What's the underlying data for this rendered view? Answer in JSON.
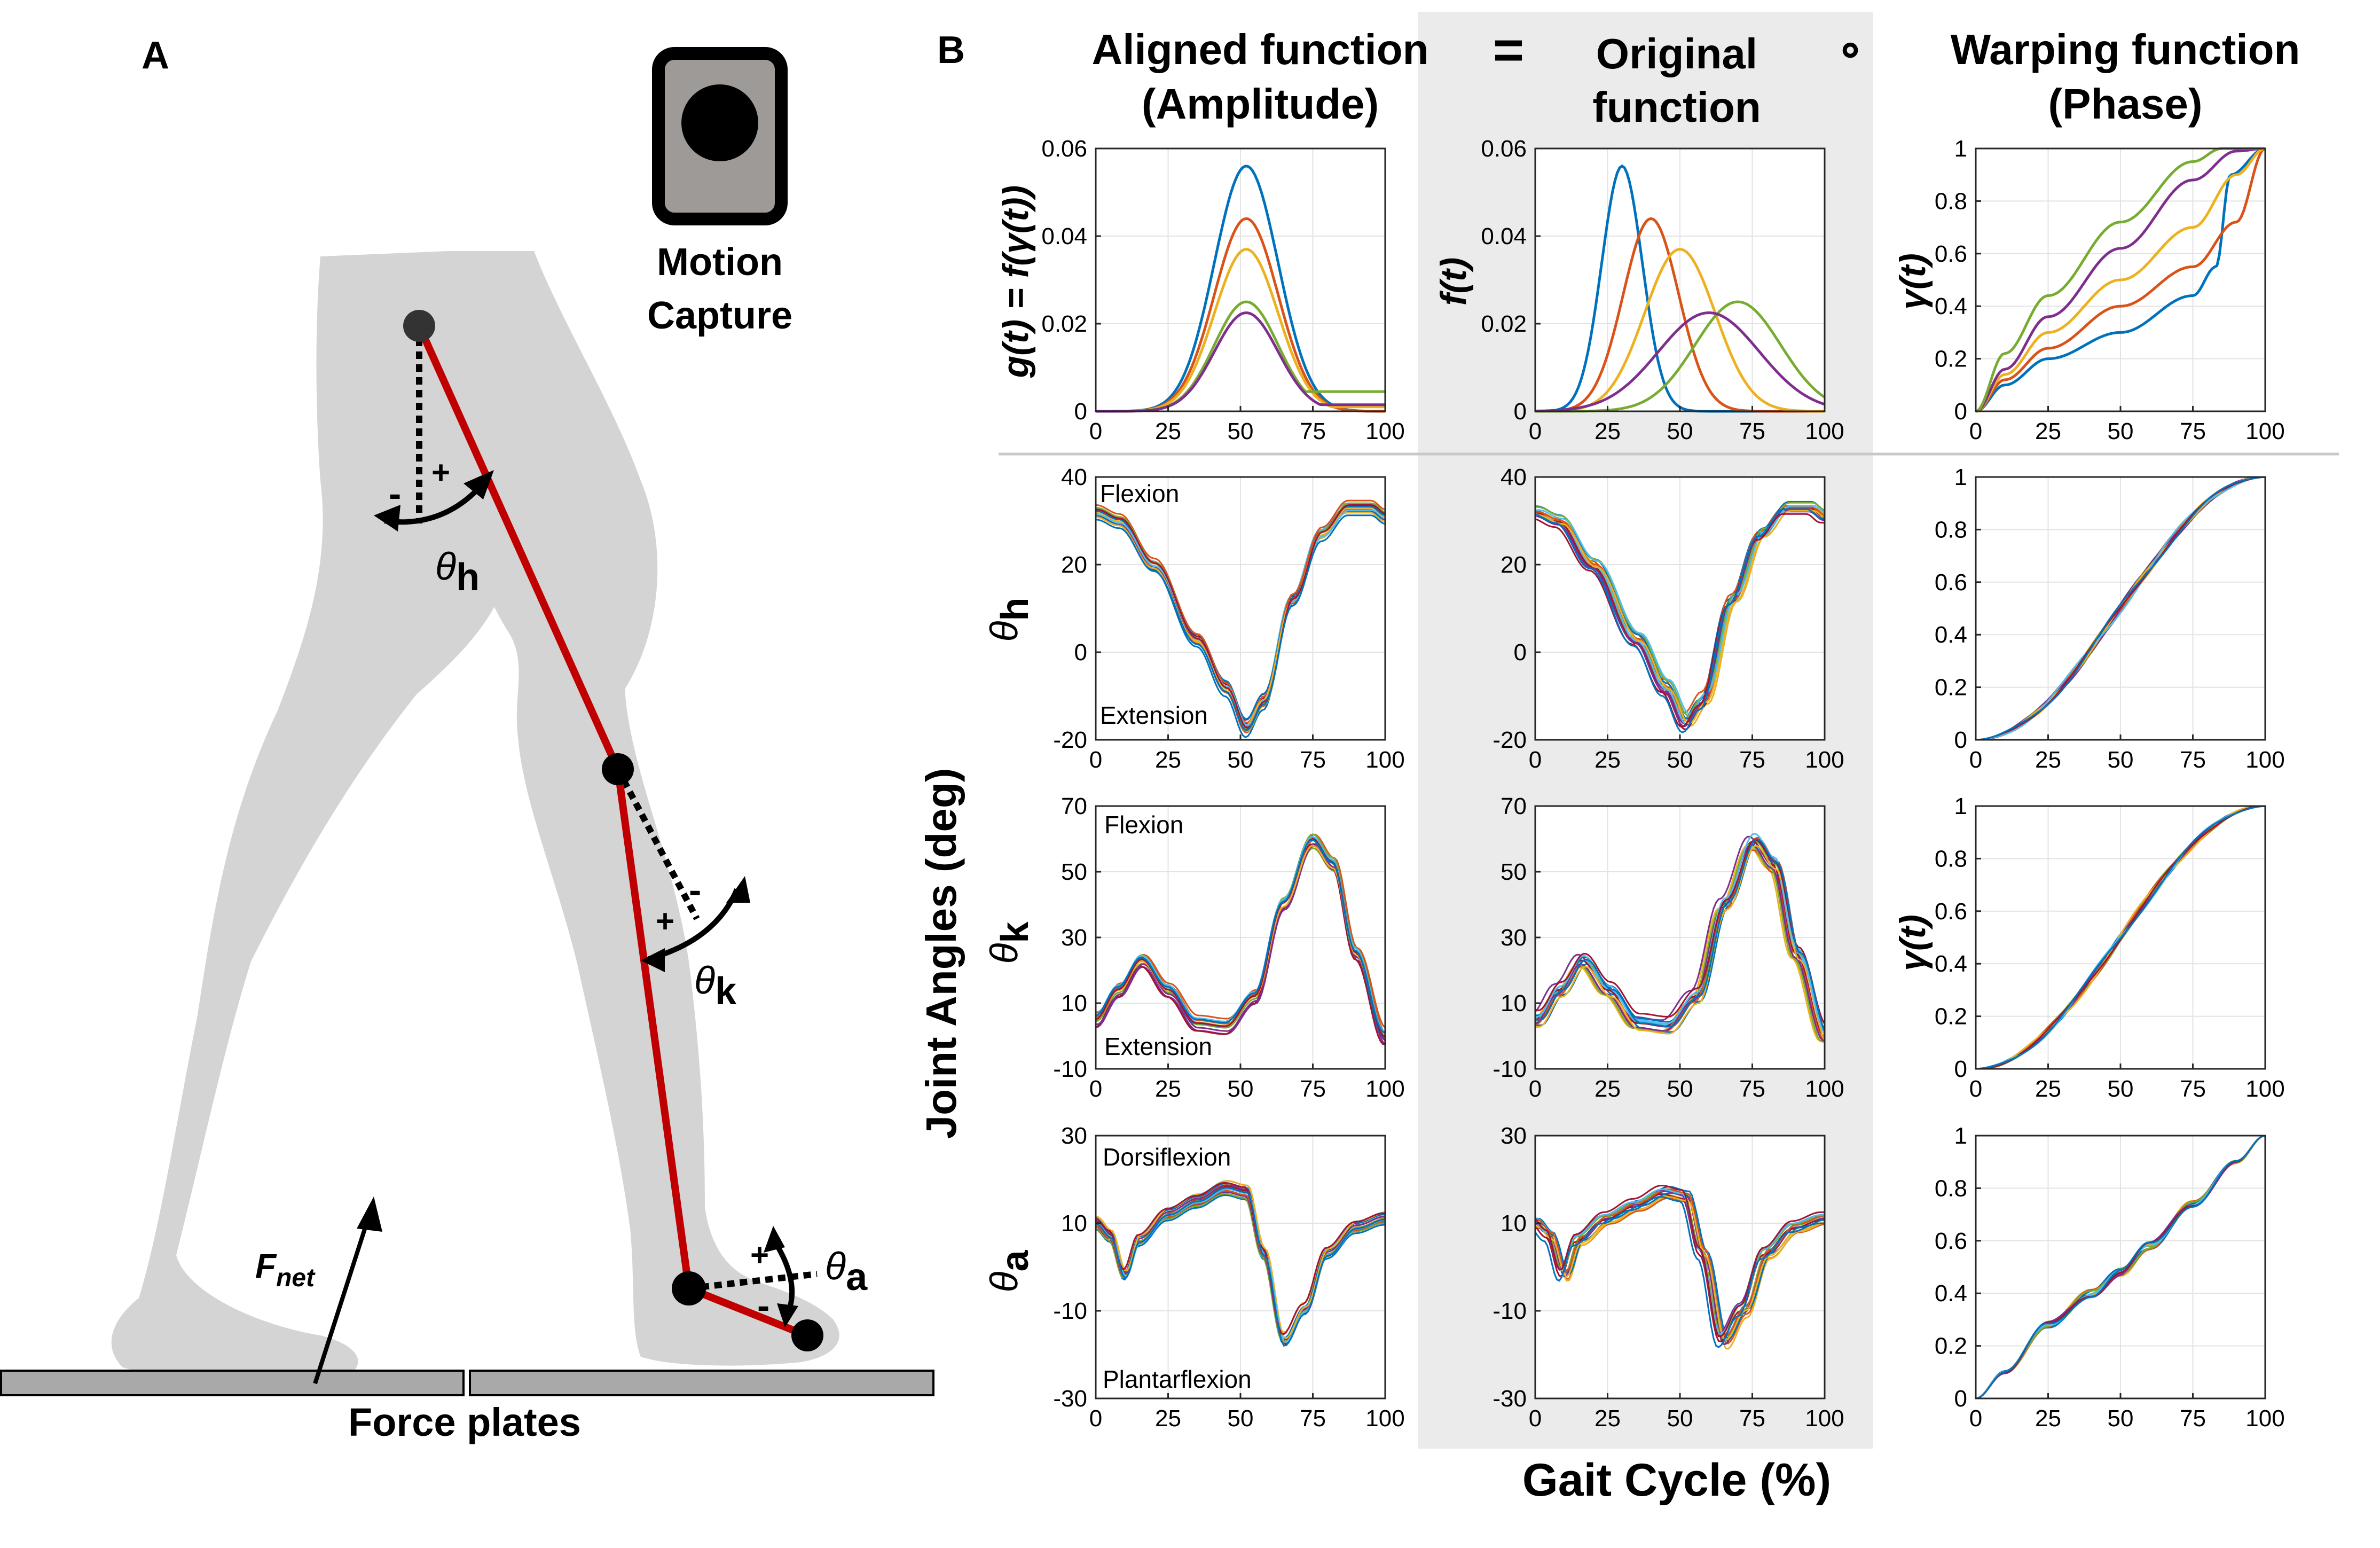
{
  "panel_a": {
    "label": "A",
    "camera_title_line1": "Motion",
    "camera_title_line2": "Capture",
    "force_plates_label": "Force plates",
    "force_label": "F",
    "force_subscript": "net",
    "hip_angle": {
      "symbol": "θ",
      "sub": "h",
      "plus": "+",
      "minus": "-"
    },
    "knee_angle": {
      "symbol": "θ",
      "sub": "k",
      "plus": "+",
      "minus": "-"
    },
    "ankle_angle": {
      "symbol": "θ",
      "sub": "a",
      "plus": "+",
      "minus": "-"
    },
    "colors": {
      "body": "#d4d4d4",
      "segment": "#c00000",
      "plate": "#a9a9a9",
      "camera": "#9e9a98"
    }
  },
  "panel_b": {
    "label": "B",
    "col1_line1": "Aligned function",
    "col1_line2": "(Amplitude)",
    "col2_line1": "Original",
    "col2_line2": "function",
    "col3_line1": "Warping function",
    "col3_line2": "(Phase)",
    "equals": "=",
    "compose": "∘",
    "ylabel_g": "g(t) = f(γ(t))",
    "ylabel_f": "f(t)",
    "ylabel_gamma": "γ(t)",
    "ylabel_theta_h": "θ",
    "ylabel_theta_h_sub": "h",
    "ylabel_theta_k": "θ",
    "ylabel_theta_k_sub": "k",
    "ylabel_theta_a": "θ",
    "ylabel_theta_a_sub": "a",
    "joint_angles_label": "Joint Angles (deg)",
    "gait_cycle_label": "Gait Cycle (%)",
    "annot_flexion": "Flexion",
    "annot_extension": "Extension",
    "annot_dorsiflexion": "Dorsiflexion",
    "annot_plantarflexion": "Plantarflexion",
    "shade_color": "#ebebeb",
    "series_colors": [
      "#0072bd",
      "#d95319",
      "#edb120",
      "#77ac30",
      "#7e2f8e"
    ]
  },
  "chart_data": [
    {
      "type": "line",
      "id": "aligned_synthetic",
      "x_range": [
        0,
        100
      ],
      "ylim": [
        0,
        0.06
      ],
      "xticks": [
        0,
        25,
        50,
        75,
        100
      ],
      "yticks": [
        0,
        0.02,
        0.04,
        0.06
      ],
      "series": [
        {
          "color": "#0072bd",
          "peak_x": 52,
          "peak_y": 0.056,
          "tail_y": 0.0
        },
        {
          "color": "#d95319",
          "peak_x": 52,
          "peak_y": 0.044,
          "tail_y": 0.0
        },
        {
          "color": "#edb120",
          "peak_x": 52,
          "peak_y": 0.037,
          "tail_y": 0.001
        },
        {
          "color": "#77ac30",
          "peak_x": 52,
          "peak_y": 0.025,
          "tail_y": 0.0045
        },
        {
          "color": "#7e2f8e",
          "peak_x": 52,
          "peak_y": 0.0225,
          "tail_y": 0.0015
        }
      ]
    },
    {
      "type": "line",
      "id": "original_synthetic",
      "x_range": [
        0,
        100
      ],
      "ylim": [
        0,
        0.06
      ],
      "xticks": [
        0,
        25,
        50,
        75,
        100
      ],
      "yticks": [
        0,
        0.02,
        0.04,
        0.06
      ],
      "series": [
        {
          "color": "#0072bd",
          "peak_x": 30,
          "peak_y": 0.056
        },
        {
          "color": "#d95319",
          "peak_x": 40,
          "peak_y": 0.044
        },
        {
          "color": "#edb120",
          "peak_x": 50,
          "peak_y": 0.037
        },
        {
          "color": "#77ac30",
          "peak_x": 70,
          "peak_y": 0.025
        },
        {
          "color": "#7e2f8e",
          "peak_x": 60,
          "peak_y": 0.0225
        }
      ]
    },
    {
      "type": "line",
      "id": "warping_synthetic",
      "x_range": [
        0,
        100
      ],
      "ylim": [
        0,
        1
      ],
      "xticks": [
        0,
        25,
        50,
        75,
        100
      ],
      "yticks": [
        0,
        0.2,
        0.4,
        0.6,
        0.8,
        1
      ],
      "series": [
        {
          "color": "#0072bd",
          "x": [
            0,
            10,
            25,
            50,
            75,
            83,
            88,
            100
          ],
          "y": [
            0,
            0.1,
            0.2,
            0.3,
            0.44,
            0.55,
            0.9,
            1
          ]
        },
        {
          "color": "#d95319",
          "x": [
            0,
            10,
            25,
            50,
            75,
            90,
            100
          ],
          "y": [
            0,
            0.12,
            0.24,
            0.4,
            0.55,
            0.72,
            1
          ]
        },
        {
          "color": "#edb120",
          "x": [
            0,
            10,
            25,
            50,
            75,
            90,
            100
          ],
          "y": [
            0,
            0.14,
            0.3,
            0.5,
            0.7,
            0.9,
            1
          ]
        },
        {
          "color": "#7e2f8e",
          "x": [
            0,
            10,
            25,
            50,
            75,
            90,
            100
          ],
          "y": [
            0,
            0.16,
            0.36,
            0.62,
            0.88,
            0.99,
            1
          ]
        },
        {
          "color": "#77ac30",
          "x": [
            0,
            10,
            25,
            50,
            75,
            85,
            100
          ],
          "y": [
            0,
            0.22,
            0.44,
            0.72,
            0.95,
            1,
            1
          ]
        }
      ]
    },
    {
      "type": "line",
      "id": "hip_aligned",
      "x_range": [
        0,
        100
      ],
      "ylim": [
        -20,
        40
      ],
      "xticks": [
        0,
        25,
        50,
        75,
        100
      ],
      "yticks": [
        -20,
        0,
        20,
        40
      ],
      "mean_x": [
        0,
        8,
        20,
        35,
        45,
        52,
        58,
        68,
        78,
        87,
        95,
        100
      ],
      "mean_y": [
        32,
        30,
        20,
        3,
        -8,
        -17,
        -11,
        12,
        27,
        33,
        33,
        31
      ]
    },
    {
      "type": "line",
      "id": "hip_original",
      "x_range": [
        0,
        100
      ],
      "ylim": [
        -20,
        40
      ],
      "xticks": [
        0,
        25,
        50,
        75,
        100
      ],
      "yticks": [
        -20,
        0,
        20,
        40
      ],
      "mean_x": [
        0,
        8,
        20,
        35,
        45,
        52,
        58,
        68,
        78,
        87,
        95,
        100
      ],
      "mean_y": [
        32,
        30,
        20,
        3,
        -8,
        -16,
        -11,
        12,
        27,
        33,
        33,
        31
      ]
    },
    {
      "type": "line",
      "id": "hip_warp",
      "x_range": [
        0,
        100
      ],
      "ylim": [
        0,
        1
      ],
      "xticks": [
        0,
        25,
        50,
        75,
        100
      ],
      "yticks": [
        0,
        0.2,
        0.4,
        0.6,
        0.8,
        1
      ],
      "x": [
        0,
        100
      ],
      "y": [
        0,
        1
      ]
    },
    {
      "type": "line",
      "id": "knee_aligned",
      "x_range": [
        0,
        100
      ],
      "ylim": [
        -10,
        70
      ],
      "xticks": [
        0,
        25,
        50,
        75,
        100
      ],
      "yticks": [
        -10,
        10,
        30,
        50,
        70
      ],
      "mean_x": [
        0,
        8,
        16,
        25,
        35,
        45,
        55,
        65,
        75,
        82,
        90,
        100
      ],
      "mean_y": [
        5,
        14,
        23,
        14,
        4,
        3,
        12,
        40,
        59,
        52,
        25,
        0
      ]
    },
    {
      "type": "line",
      "id": "knee_original",
      "x_range": [
        0,
        100
      ],
      "ylim": [
        -10,
        70
      ],
      "xticks": [
        0,
        25,
        50,
        75,
        100
      ],
      "yticks": [
        -10,
        10,
        30,
        50,
        70
      ],
      "mean_x": [
        0,
        8,
        16,
        25,
        35,
        45,
        55,
        65,
        75,
        82,
        90,
        100
      ],
      "mean_y": [
        5,
        14,
        23,
        14,
        4,
        3,
        12,
        40,
        59,
        52,
        25,
        0
      ]
    },
    {
      "type": "line",
      "id": "knee_warp",
      "x_range": [
        0,
        100
      ],
      "ylim": [
        0,
        1
      ],
      "xticks": [
        0,
        25,
        50,
        75,
        100
      ],
      "yticks": [
        0,
        0.2,
        0.4,
        0.6,
        0.8,
        1
      ],
      "x": [
        0,
        100
      ],
      "y": [
        0,
        1
      ]
    },
    {
      "type": "line",
      "id": "ankle_aligned",
      "x_range": [
        0,
        100
      ],
      "ylim": [
        -30,
        30
      ],
      "xticks": [
        0,
        25,
        50,
        75,
        100
      ],
      "yticks": [
        -30,
        -10,
        10,
        30
      ],
      "mean_x": [
        0,
        5,
        10,
        15,
        25,
        35,
        45,
        52,
        58,
        65,
        72,
        80,
        90,
        100
      ],
      "mean_y": [
        10,
        7,
        -2,
        6,
        12,
        15,
        18,
        17,
        3,
        -17,
        -10,
        3,
        9,
        11
      ]
    },
    {
      "type": "line",
      "id": "ankle_original",
      "x_range": [
        0,
        100
      ],
      "ylim": [
        -30,
        30
      ],
      "xticks": [
        0,
        25,
        50,
        75,
        100
      ],
      "yticks": [
        -30,
        -10,
        10,
        30
      ],
      "mean_x": [
        0,
        5,
        10,
        15,
        25,
        35,
        45,
        52,
        58,
        65,
        72,
        80,
        90,
        100
      ],
      "mean_y": [
        10,
        7,
        -2,
        6,
        11,
        14,
        17,
        16,
        3,
        -17,
        -10,
        3,
        9,
        11
      ]
    },
    {
      "type": "line",
      "id": "ankle_warp",
      "x_range": [
        0,
        100
      ],
      "ylim": [
        0,
        1
      ],
      "xticks": [
        0,
        25,
        50,
        75,
        100
      ],
      "yticks": [
        0,
        0.2,
        0.4,
        0.6,
        0.8,
        1
      ],
      "x": [
        0,
        10,
        25,
        40,
        50,
        60,
        75,
        90,
        100
      ],
      "y": [
        0,
        0.1,
        0.28,
        0.4,
        0.48,
        0.58,
        0.74,
        0.9,
        1
      ]
    }
  ]
}
